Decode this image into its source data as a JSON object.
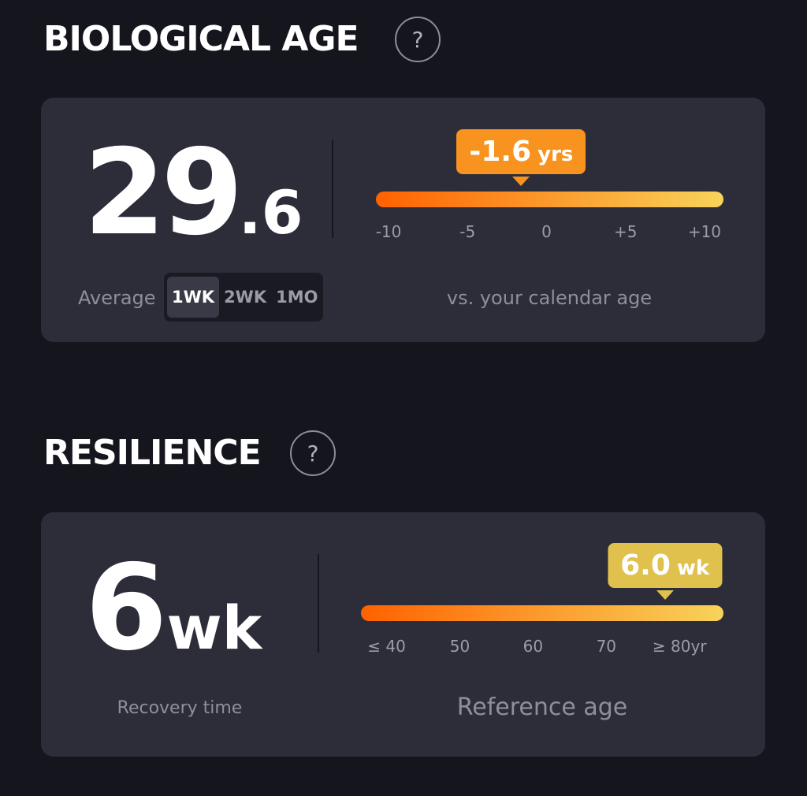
{
  "biological_age": {
    "title": "BIOLOGICAL AGE",
    "help": "?",
    "value_whole": "29",
    "value_decimal": ".6",
    "average_label": "Average",
    "periods": [
      "1WK",
      "2WK",
      "1MO"
    ],
    "selected_period": 0,
    "gauge": {
      "value": -1.6,
      "unit": "yrs",
      "range": [
        -10.8,
        11.2
      ],
      "ticks": [
        -10,
        -5,
        0,
        {
          "value": 5,
          "label": "+5"
        },
        {
          "value": 10,
          "label": "+10"
        }
      ],
      "caption": "vs. your calendar age"
    }
  },
  "resilience": {
    "title": "RESILIENCE",
    "help": "?",
    "value_whole": "6",
    "value_unit": "wk",
    "label": "Recovery time",
    "gauge": {
      "value": 78,
      "badge_value": "6.0",
      "unit": "wk",
      "range": [
        36.5,
        86
      ],
      "ticks": [
        {
          "value": 40,
          "label": "≤ 40"
        },
        50,
        60,
        70,
        {
          "value": 80,
          "label": "≥ 80yr"
        }
      ],
      "caption": "Reference age"
    }
  }
}
